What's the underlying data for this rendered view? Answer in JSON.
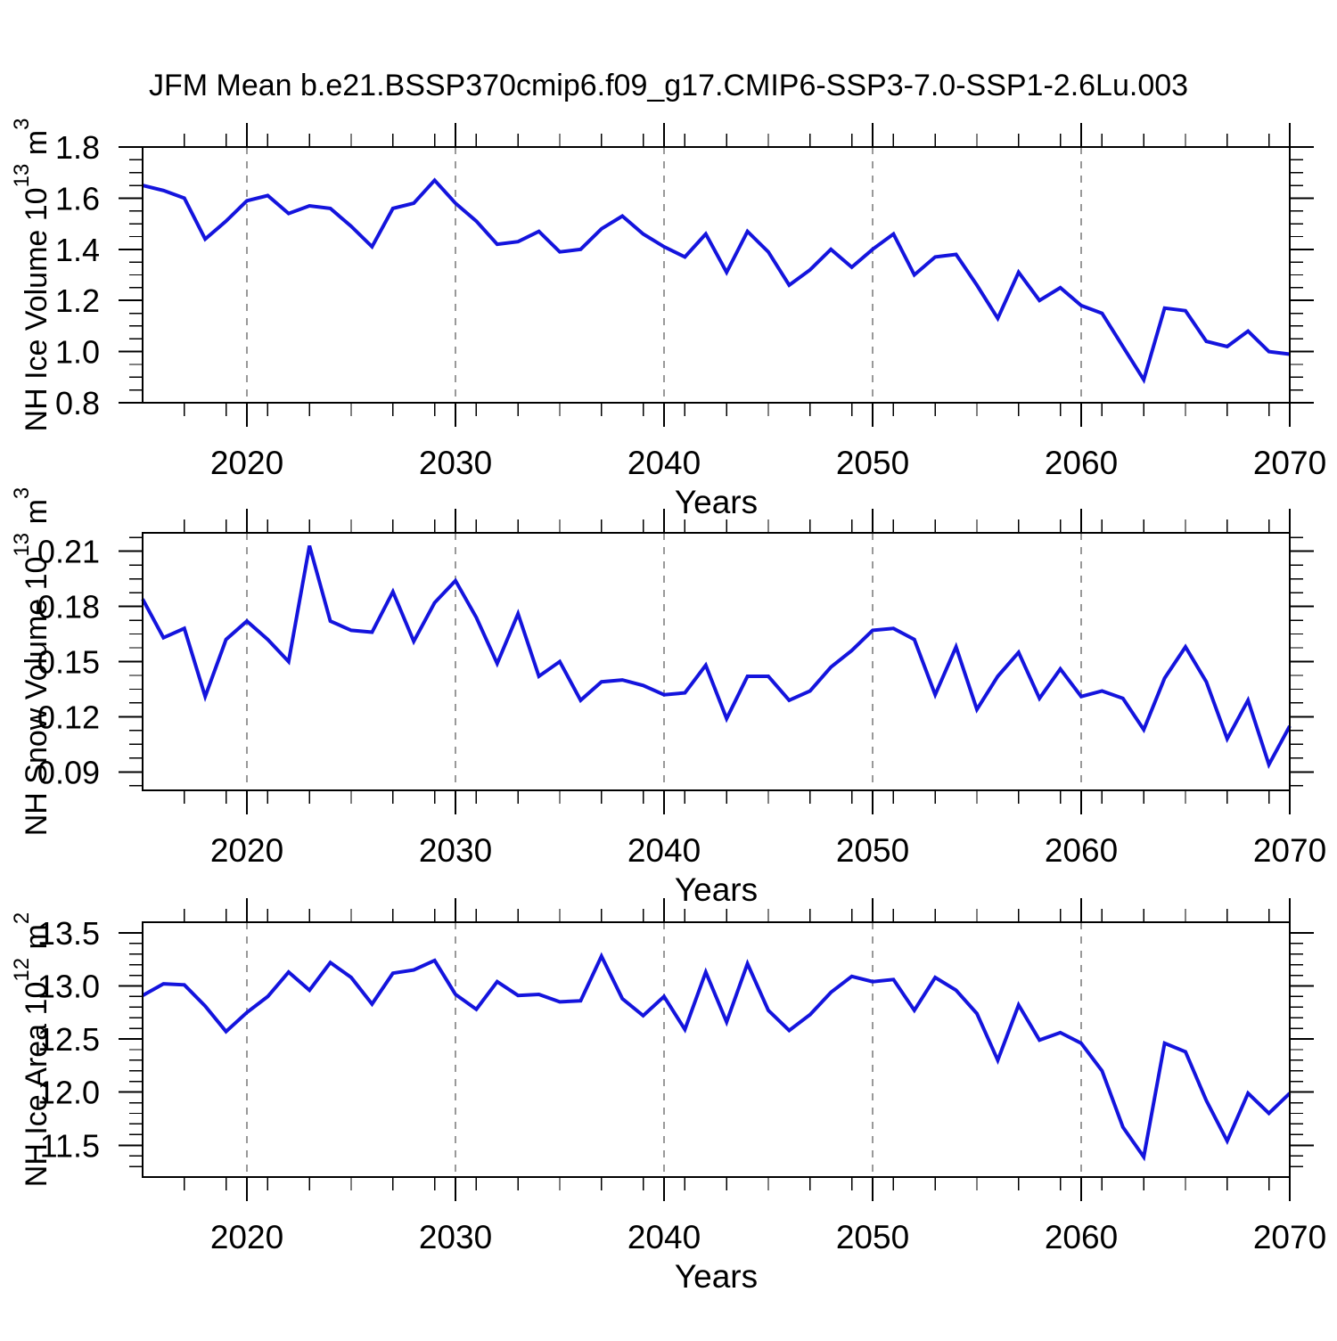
{
  "title": "JFM Mean b.e21.BSSP370cmip6.f09_g17.CMIP6-SSP3-7.0-SSP1-2.6Lu.003",
  "x_axis": {
    "label": "Years",
    "range": [
      2015,
      2070
    ],
    "major_ticks": [
      2020,
      2030,
      2040,
      2050,
      2060,
      2070
    ],
    "tick_labels": [
      "2020",
      "2030",
      "2040",
      "2050",
      "2060",
      "2070"
    ],
    "minor_tick_step": 2,
    "gridline_years": [
      2020,
      2030,
      2040,
      2050,
      2060
    ]
  },
  "style": {
    "line_color": "#1414dd",
    "grid_color": "#999999",
    "frame_color": "#000000"
  },
  "years": [
    2015,
    2016,
    2017,
    2018,
    2019,
    2020,
    2021,
    2022,
    2023,
    2024,
    2025,
    2026,
    2027,
    2028,
    2029,
    2030,
    2031,
    2032,
    2033,
    2034,
    2035,
    2036,
    2037,
    2038,
    2039,
    2040,
    2041,
    2042,
    2043,
    2044,
    2045,
    2046,
    2047,
    2048,
    2049,
    2050,
    2051,
    2052,
    2053,
    2054,
    2055,
    2056,
    2057,
    2058,
    2059,
    2060,
    2061,
    2062,
    2063,
    2064,
    2065,
    2066,
    2067,
    2068,
    2069,
    2070
  ],
  "chart_data": [
    {
      "id": "ice-volume",
      "type": "line",
      "xlabel": "Years",
      "ylabel_text": "NH Ice Volume 10^13 m^3",
      "ylabel_parts": [
        "NH Ice Volume 10",
        "13",
        " m",
        "3"
      ],
      "ylim": [
        0.8,
        1.8
      ],
      "yticks": [
        0.8,
        1.0,
        1.2,
        1.4,
        1.6,
        1.8
      ],
      "ytick_labels": [
        "0.8",
        "1.0",
        "1.2",
        "1.4",
        "1.6",
        "1.8"
      ],
      "y_minor_step": 0.05,
      "grid": "vertical-dashed",
      "legend": "none",
      "values": [
        1.65,
        1.63,
        1.6,
        1.44,
        1.51,
        1.59,
        1.61,
        1.54,
        1.57,
        1.56,
        1.49,
        1.41,
        1.56,
        1.58,
        1.67,
        1.58,
        1.51,
        1.42,
        1.43,
        1.47,
        1.39,
        1.4,
        1.48,
        1.53,
        1.46,
        1.41,
        1.37,
        1.46,
        1.31,
        1.47,
        1.39,
        1.26,
        1.32,
        1.4,
        1.33,
        1.4,
        1.46,
        1.3,
        1.37,
        1.38,
        1.26,
        1.13,
        1.31,
        1.2,
        1.25,
        1.18,
        1.15,
        1.02,
        0.89,
        1.17,
        1.16,
        1.04,
        1.02,
        1.08,
        1.0,
        0.99
      ]
    },
    {
      "id": "snow-volume",
      "type": "line",
      "xlabel": "Years",
      "ylabel_text": "NH Snow Volume 10^13 m^3",
      "ylabel_parts": [
        "NH Snow Volume 10",
        "13",
        " m",
        "3"
      ],
      "ylim": [
        0.08,
        0.22
      ],
      "yticks": [
        0.09,
        0.12,
        0.15,
        0.18,
        0.21
      ],
      "ytick_labels": [
        "0.09",
        "0.12",
        "0.15",
        "0.18",
        "0.21"
      ],
      "y_minor_step": 0.0075,
      "grid": "vertical-dashed",
      "legend": "none",
      "values": [
        0.184,
        0.163,
        0.168,
        0.131,
        0.162,
        0.172,
        0.162,
        0.15,
        0.213,
        0.172,
        0.167,
        0.166,
        0.188,
        0.161,
        0.182,
        0.194,
        0.174,
        0.149,
        0.176,
        0.142,
        0.15,
        0.129,
        0.139,
        0.14,
        0.137,
        0.132,
        0.133,
        0.148,
        0.119,
        0.142,
        0.142,
        0.129,
        0.134,
        0.147,
        0.156,
        0.167,
        0.168,
        0.162,
        0.132,
        0.158,
        0.124,
        0.142,
        0.155,
        0.13,
        0.146,
        0.131,
        0.134,
        0.13,
        0.113,
        0.141,
        0.158,
        0.139,
        0.108,
        0.129,
        0.094,
        0.115
      ]
    },
    {
      "id": "ice-area",
      "type": "line",
      "xlabel": "Years",
      "ylabel_text": "NH Ice Area 10^12 m^2",
      "ylabel_parts": [
        "NH Ice Area 10",
        "12",
        " m",
        "2"
      ],
      "ylim": [
        11.2,
        13.6
      ],
      "yticks": [
        11.5,
        12.0,
        12.5,
        13.0,
        13.5
      ],
      "ytick_labels": [
        "11.5",
        "12.0",
        "12.5",
        "13.0",
        "13.5"
      ],
      "y_minor_step": 0.1,
      "grid": "vertical-dashed",
      "legend": "none",
      "values": [
        12.91,
        13.02,
        13.01,
        12.81,
        12.57,
        12.75,
        12.9,
        13.13,
        12.96,
        13.22,
        13.08,
        12.83,
        13.12,
        13.15,
        13.24,
        12.92,
        12.78,
        13.04,
        12.91,
        12.92,
        12.85,
        12.86,
        13.28,
        12.88,
        12.72,
        12.9,
        12.59,
        13.13,
        12.66,
        13.21,
        12.77,
        12.58,
        12.73,
        12.94,
        13.09,
        13.04,
        13.06,
        12.77,
        13.08,
        12.96,
        12.74,
        12.3,
        12.82,
        12.49,
        12.56,
        12.46,
        12.2,
        11.67,
        11.39,
        12.46,
        12.38,
        11.92,
        11.54,
        11.99,
        11.8,
        11.99
      ]
    }
  ]
}
